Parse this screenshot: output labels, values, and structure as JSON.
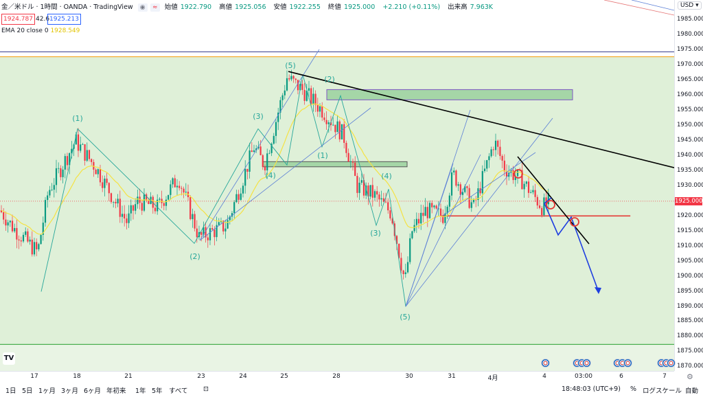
{
  "header": {
    "symbol": "金／米ドル · 1時間 · OANDA · TradingView",
    "ohlc": [
      {
        "label": "始値",
        "value": "1922.790"
      },
      {
        "label": "高値",
        "value": "1925.056"
      },
      {
        "label": "安値",
        "value": "1922.255"
      },
      {
        "label": "終値",
        "value": "1925.000"
      },
      {
        "label": "",
        "value": "+2.210 (+0.11%)"
      },
      {
        "label": "出来高",
        "value": "7.963K"
      }
    ],
    "bid": "1924.787",
    "spread": "42.6",
    "ask": "1925.213",
    "ema_label": "EMA 20 close 0",
    "ema_value": "1928.549",
    "icons": [
      "eye-icon",
      "alert-icon"
    ]
  },
  "price_axis": {
    "currency": "USD",
    "ticks": [
      "1985.000",
      "1980.000",
      "1975.000",
      "1970.000",
      "1965.000",
      "1960.000",
      "1955.000",
      "1950.000",
      "1945.000",
      "1940.000",
      "1935.000",
      "1930.000",
      "1920.000",
      "1915.000",
      "1910.000",
      "1905.000",
      "1900.000",
      "1895.000",
      "1890.000",
      "1885.000",
      "1880.000",
      "1875.000",
      "1870.000"
    ],
    "current_price": "1925.000",
    "current_price_color": "#f23645"
  },
  "time_axis": {
    "ticks": [
      "17",
      "18",
      "21",
      "23",
      "24",
      "25",
      "28",
      "30",
      "31",
      "4月",
      "4",
      "03:00",
      "6",
      "7"
    ]
  },
  "toolbar": {
    "ranges": [
      "1日",
      "5日",
      "1ヶ月",
      "3ヶ月",
      "6ヶ月",
      "年初来",
      "1年",
      "5年",
      "すべて"
    ],
    "time": "18:48:03 (UTC+9)",
    "percent": "%",
    "log": "ログスケール",
    "auto": "自動"
  },
  "chart_data": {
    "type": "candlestick",
    "symbol": "XAU/USD",
    "timeframe": "1H",
    "ylim": [
      1868,
      1990
    ],
    "current_price": 1925.0,
    "ema20_last": 1928.549,
    "horizontal_lines": [
      {
        "price": 1972.9,
        "color": "#f5a623",
        "note": "orange"
      },
      {
        "price": 1877.5,
        "color": "#4caf50",
        "note": "green"
      },
      {
        "price": 1920.1,
        "color": "#e53935",
        "from_x_frac": 0.655,
        "to_x_frac": 0.935
      }
    ],
    "zones": [
      {
        "top": 1962.0,
        "bottom": 1958.6,
        "from": "27",
        "to": "4月+"
      },
      {
        "top": 1938.1,
        "bottom": 1936.4,
        "from": "24",
        "to": "31"
      }
    ],
    "trendline_price_start": 1968.0,
    "trendline_price_end": 1935.0,
    "wave_labels": [
      {
        "text": "(1)",
        "price": 1950.5
      },
      {
        "text": "(2)",
        "price": 1908.0
      },
      {
        "text": "(3)",
        "price": 1953.0
      },
      {
        "text": "(4)",
        "price": 1933.5
      },
      {
        "text": "(5)",
        "price": 1970.0
      },
      {
        "text": "(2)",
        "price": 1964.0
      },
      {
        "text": "(1)",
        "price": 1941.0
      },
      {
        "text": "(4)",
        "price": 1933.5
      },
      {
        "text": "(3)",
        "price": 1914.0
      },
      {
        "text": "(5)",
        "price": 1887.0
      }
    ],
    "wave_path": [
      1895,
      1949,
      1911,
      1949,
      1937,
      1967,
      1943,
      1960,
      1917,
      1929,
      1890
    ]
  },
  "colors": {
    "background_top": "#ffffff",
    "zone_fill": "#dff0d8",
    "up": "#089981",
    "down": "#f23645"
  }
}
